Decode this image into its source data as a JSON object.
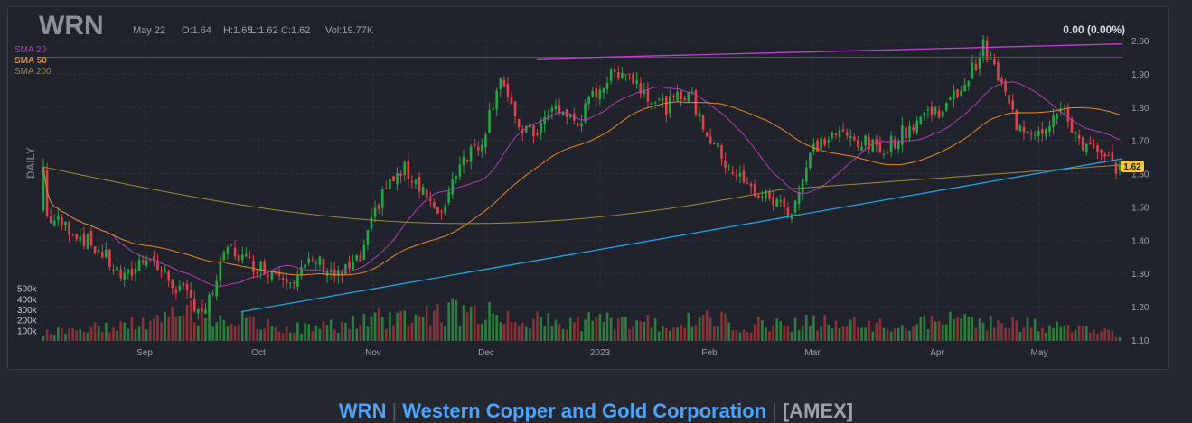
{
  "ticker": "WRN",
  "header": {
    "date": "May 22",
    "open": "O:1.64",
    "high": "H:1.65",
    "low": "L:1.62",
    "close": "C:1.62",
    "volume": "Vol:19.77K",
    "change": "0.00 (0.00%)"
  },
  "period_label": "DAILY",
  "footer": {
    "symbol": "WRN",
    "company": "Western Copper and Gold Corporation",
    "exchange": "[AMEX]"
  },
  "chart_data": {
    "type": "candlestick",
    "price_axis": {
      "min": 1.1,
      "max": 2.0,
      "ticks": [
        "2.00",
        "1.90",
        "1.80",
        "1.70",
        "1.60",
        "1.50",
        "1.40",
        "1.30",
        "1.20",
        "1.10"
      ]
    },
    "volume_axis": {
      "max": 600000,
      "ticks": [
        "500k",
        "400k",
        "300k",
        "200k",
        "100k"
      ]
    },
    "x_ticks": [
      "Sep",
      "Oct",
      "Nov",
      "Dec",
      "2023",
      "Feb",
      "Mar",
      "Apr",
      "May"
    ],
    "last_price_label": "1.62",
    "legend": [
      {
        "name": "SMA 20",
        "color": "#b03fb3"
      },
      {
        "name": "SMA 50",
        "color": "#e8862a"
      },
      {
        "name": "SMA 200",
        "color": "#9c8a3c"
      }
    ],
    "colors": {
      "up": "#26a641",
      "down": "#e0404a",
      "upVol": "#2e7d3e",
      "downVol": "#8e2e35",
      "trend_support": "#1fa5e6",
      "trend_resistance": "#c33fd6",
      "horizontal": "#5b3fbf"
    },
    "close_waypoints": [
      [
        0,
        1.62
      ],
      [
        1,
        1.47
      ],
      [
        8,
        1.43
      ],
      [
        16,
        1.36
      ],
      [
        22,
        1.28
      ],
      [
        28,
        1.36
      ],
      [
        34,
        1.28
      ],
      [
        40,
        1.22
      ],
      [
        44,
        1.18
      ],
      [
        50,
        1.38
      ],
      [
        56,
        1.33
      ],
      [
        62,
        1.31
      ],
      [
        68,
        1.29
      ],
      [
        74,
        1.34
      ],
      [
        80,
        1.29
      ],
      [
        86,
        1.34
      ],
      [
        92,
        1.55
      ],
      [
        98,
        1.61
      ],
      [
        103,
        1.56
      ],
      [
        107,
        1.46
      ],
      [
        113,
        1.64
      ],
      [
        119,
        1.7
      ],
      [
        124,
        1.9
      ],
      [
        128,
        1.75
      ],
      [
        133,
        1.72
      ],
      [
        139,
        1.8
      ],
      [
        145,
        1.75
      ],
      [
        150,
        1.85
      ],
      [
        157,
        1.92
      ],
      [
        163,
        1.85
      ],
      [
        169,
        1.8
      ],
      [
        175,
        1.85
      ],
      [
        180,
        1.72
      ],
      [
        186,
        1.62
      ],
      [
        192,
        1.55
      ],
      [
        198,
        1.52
      ],
      [
        203,
        1.49
      ],
      [
        209,
        1.68
      ],
      [
        215,
        1.72
      ],
      [
        221,
        1.7
      ],
      [
        227,
        1.67
      ],
      [
        233,
        1.72
      ],
      [
        239,
        1.78
      ],
      [
        245,
        1.8
      ],
      [
        251,
        1.89
      ],
      [
        255,
        1.98
      ],
      [
        259,
        1.89
      ],
      [
        264,
        1.75
      ],
      [
        270,
        1.73
      ],
      [
        276,
        1.79
      ],
      [
        282,
        1.69
      ],
      [
        288,
        1.64
      ],
      [
        292,
        1.62
      ]
    ],
    "volume_waypoints": [
      [
        0,
        90000
      ],
      [
        10,
        110000
      ],
      [
        20,
        140000
      ],
      [
        30,
        170000
      ],
      [
        40,
        290000
      ],
      [
        50,
        220000
      ],
      [
        60,
        140000
      ],
      [
        70,
        120000
      ],
      [
        80,
        150000
      ],
      [
        90,
        200000
      ],
      [
        100,
        240000
      ],
      [
        110,
        280000
      ],
      [
        120,
        260000
      ],
      [
        130,
        220000
      ],
      [
        140,
        160000
      ],
      [
        150,
        200000
      ],
      [
        160,
        180000
      ],
      [
        170,
        150000
      ],
      [
        180,
        210000
      ],
      [
        190,
        160000
      ],
      [
        200,
        160000
      ],
      [
        210,
        180000
      ],
      [
        220,
        150000
      ],
      [
        230,
        140000
      ],
      [
        240,
        170000
      ],
      [
        250,
        210000
      ],
      [
        260,
        170000
      ],
      [
        270,
        140000
      ],
      [
        280,
        120000
      ],
      [
        292,
        60000
      ]
    ]
  }
}
